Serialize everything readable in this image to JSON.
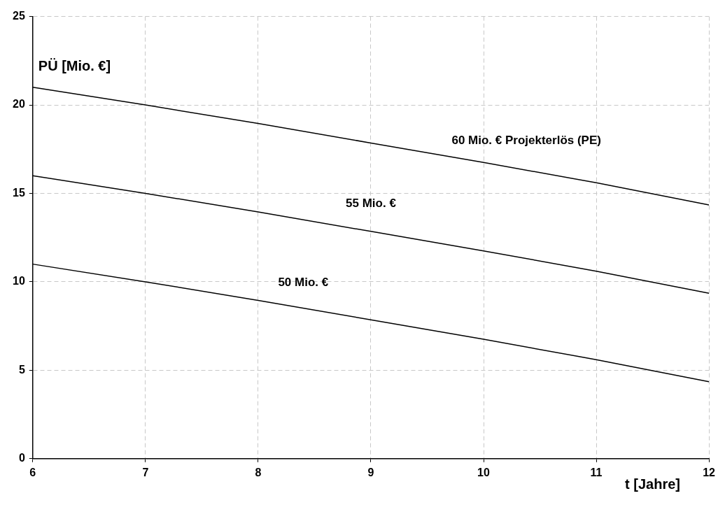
{
  "chart_data": {
    "type": "line",
    "xlabel": "t [Jahre]",
    "ylabel": "PÜ [Mio. €]",
    "x": [
      6,
      7,
      8,
      9,
      10,
      11,
      12
    ],
    "series": [
      {
        "name": "60 Mio. € Projekterlös (PE)",
        "color": "#000000",
        "values": [
          21,
          20,
          18.95,
          17.85,
          16.75,
          15.6,
          14.35
        ]
      },
      {
        "name": "55 Mio. €",
        "color": "#000000",
        "values": [
          16,
          15,
          13.95,
          12.85,
          11.75,
          10.6,
          9.35
        ]
      },
      {
        "name": "50 Mio. €",
        "color": "#000000",
        "values": [
          11,
          10,
          8.95,
          7.85,
          6.75,
          5.6,
          4.35
        ]
      }
    ],
    "xlim": [
      6,
      12
    ],
    "xticks": [
      6,
      7,
      8,
      9,
      10,
      11,
      12
    ],
    "ylim": [
      0,
      25
    ],
    "yticks": [
      0,
      5,
      10,
      15,
      20,
      25
    ],
    "grid": true,
    "legend": false,
    "marker": "none",
    "line_style": "solid"
  }
}
